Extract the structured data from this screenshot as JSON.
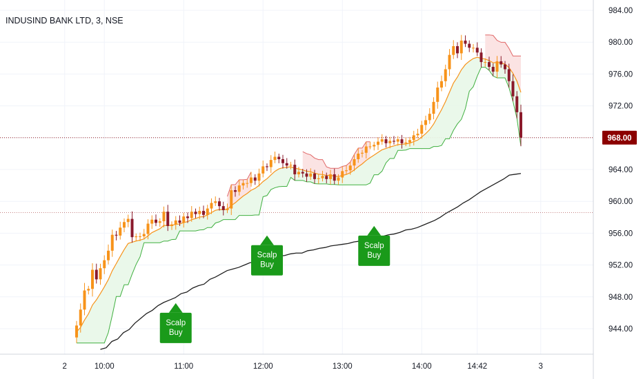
{
  "header": {
    "symbol_title": "INDUSIND BANK LTD, 3, NSE"
  },
  "colors": {
    "up_candle": "#F7931A",
    "down_candle": "#8B1A2B",
    "fast_ma": "#F7931A",
    "slow_ma": "#1E1E1E",
    "support_line": "#3FAF3F",
    "resistance_line": "#E06666",
    "support_fill": "#E8F7E8",
    "resistance_fill": "#FBE3E3",
    "signal_bg": "#1A9A1A",
    "price_tag": "#8B0000"
  },
  "chart_data": {
    "type": "candlestick",
    "title": "INDUSIND BANK LTD, 3, NSE",
    "ylim": [
      940.5,
      985.0
    ],
    "y_ticks": [
      "984.00",
      "980.00",
      "976.00",
      "972.00",
      "968.00",
      "964.00",
      "960.00",
      "956.00",
      "952.00",
      "948.00",
      "944.00"
    ],
    "x_ticks": [
      {
        "label": "2",
        "bar": -3
      },
      {
        "label": "10:00",
        "bar": 7
      },
      {
        "label": "11:00",
        "bar": 27
      },
      {
        "label": "12:00",
        "bar": 47
      },
      {
        "label": "13:00",
        "bar": 67
      },
      {
        "label": "14:00",
        "bar": 87
      },
      {
        "label": "14:42",
        "bar": 101
      },
      {
        "label": "3",
        "bar": 117
      }
    ],
    "last_price": "968.00",
    "reference_line": 958.6,
    "series_close": [
      944.4,
      946.4,
      948.8,
      949.0,
      951.4,
      950.2,
      951.6,
      952.6,
      953.8,
      955.8,
      955.7,
      956.7,
      957.4,
      957.8,
      955.5,
      955.6,
      955.6,
      955.9,
      957.2,
      957.7,
      957.3,
      957.5,
      958.7,
      956.9,
      957.1,
      957.6,
      957.3,
      958.1,
      957.9,
      958.7,
      958.4,
      958.8,
      958.3,
      959.1,
      959.8,
      960.0,
      959.4,
      958.9,
      959.1,
      961.4,
      961.2,
      962.0,
      962.3,
      962.3,
      963.0,
      962.6,
      963.5,
      964.4,
      964.3,
      965.2,
      965.6,
      965.3,
      964.8,
      964.5,
      964.6,
      963.4,
      963.7,
      963.5,
      963.1,
      963.5,
      962.8,
      962.9,
      963.2,
      962.8,
      963.4,
      962.6,
      963.0,
      963.8,
      963.9,
      964.5,
      965.3,
      966.0,
      966.1,
      966.9,
      966.9,
      967.1,
      967.5,
      967.8,
      967.3,
      967.6,
      967.5,
      967.8,
      967.3,
      967.4,
      967.7,
      968.3,
      968.5,
      969.6,
      970.2,
      971.0,
      972.5,
      974.3,
      975.1,
      976.6,
      978.4,
      979.5,
      978.6,
      980.2,
      979.8,
      979.3,
      979.3,
      978.7,
      977.5,
      977.5,
      976.9,
      976.3,
      977.6,
      977.2,
      976.6,
      975.1,
      973.2,
      971.2,
      968.0
    ],
    "series_ma_slow": [
      941.4,
      941.6,
      942.4,
      942.7,
      943.5,
      943.9,
      944.7,
      945.3,
      945.9,
      946.3,
      946.9,
      947.3,
      947.6,
      947.9,
      948.4,
      948.6,
      949.1,
      949.4,
      949.6,
      950.2,
      950.5,
      950.9,
      951.3,
      951.5,
      951.7,
      952.0,
      952.3,
      952.3,
      952.5,
      952.6,
      952.8,
      953.1,
      953.2,
      953.4,
      953.5,
      953.5,
      953.8,
      953.9,
      954.1,
      954.2,
      954.4,
      954.5,
      954.6,
      954.7,
      954.9,
      955.0,
      955.1,
      955.3,
      955.4,
      955.6,
      955.8,
      955.9,
      956.1,
      956.4,
      956.5,
      956.7,
      957.0,
      957.3,
      957.6,
      958.0,
      958.5,
      958.9,
      959.3,
      959.8,
      960.2,
      960.7,
      961.2,
      961.6,
      962.0,
      962.4,
      962.8,
      963.3,
      963.4,
      963.5
    ],
    "signals": [
      {
        "label_lines": [
          "Scalp",
          "Buy"
        ],
        "bar": 25,
        "price": 946.0
      },
      {
        "label_lines": [
          "Scalp",
          "Buy"
        ],
        "bar": 48,
        "price": 954.5
      },
      {
        "label_lines": [
          "Scalp",
          "Buy"
        ],
        "bar": 75,
        "price": 955.7
      }
    ]
  }
}
